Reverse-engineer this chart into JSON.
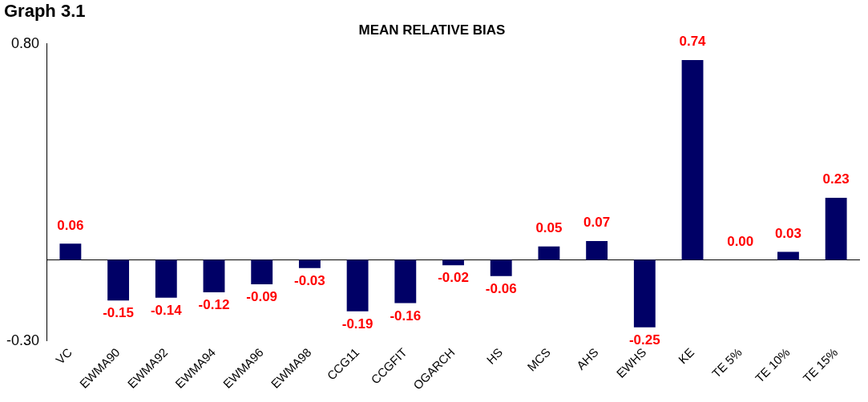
{
  "chart_data": {
    "type": "bar",
    "title": "Graph 3.1",
    "subtitle": "MEAN RELATIVE BIAS",
    "categories": [
      "VC",
      "EWMA90",
      "EWMA92",
      "EWMA94",
      "EWMA96",
      "EWMA98",
      "CCG11",
      "CCGFIT",
      "OGARCH",
      "HS",
      "MCS",
      "AHS",
      "EWHS",
      "KE",
      "TE 5%",
      "TE 10%",
      "TE 15%"
    ],
    "values": [
      0.06,
      -0.15,
      -0.14,
      -0.12,
      -0.09,
      -0.03,
      -0.19,
      -0.16,
      -0.02,
      -0.06,
      0.05,
      0.07,
      -0.25,
      0.74,
      0.0,
      0.03,
      0.23
    ],
    "value_labels": [
      "0.06",
      "-0.15",
      "-0.14",
      "-0.12",
      "-0.09",
      "-0.03",
      "-0.19",
      "-0.16",
      "-0.02",
      "-0.06",
      "0.05",
      "0.07",
      "-0.25",
      "0.74",
      "0.00",
      "0.03",
      "0.23"
    ],
    "color": "#000066",
    "ylim": [
      -0.3,
      0.8
    ],
    "yticks": [
      {
        "value": -0.3,
        "label": "-0.30"
      },
      {
        "value": 0.8,
        "label": "0.80"
      }
    ],
    "grid": false,
    "legend": false
  }
}
